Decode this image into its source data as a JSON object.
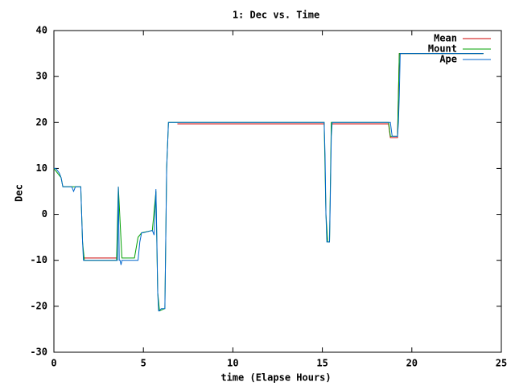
{
  "chart_data": {
    "type": "line",
    "title": "1: Dec vs. Time",
    "x_label": "time (Elapse Hours)",
    "y_label": "Dec",
    "xlim": [
      0,
      25
    ],
    "xticks": [
      0,
      5,
      10,
      15,
      20,
      25
    ],
    "ylim": [
      -30,
      40
    ],
    "yticks": [
      -30,
      -20,
      -10,
      0,
      10,
      20,
      30,
      40
    ],
    "grid": false,
    "legend": "top-right",
    "series": [
      {
        "name": "Mean",
        "color": "#cc0000",
        "x": [
          1.65,
          3.5,
          3.55,
          6.9,
          15.1,
          15.15,
          15.5,
          18.7,
          18.8,
          19.2,
          19.3,
          24
        ],
        "values": [
          -9.5,
          -9.5,
          null,
          19.7,
          19.7,
          null,
          19.7,
          19.7,
          16.7,
          16.7,
          35,
          35
        ]
      },
      {
        "name": "Mount",
        "color": "#00a000",
        "x": [
          0,
          0.4,
          0.5,
          1.5,
          1.6,
          1.7,
          3.5,
          3.6,
          3.8,
          4.5,
          4.7,
          4.9,
          5.5,
          5.7,
          5.8,
          5.9,
          6.2,
          6.3,
          6.4,
          15.1,
          15.2,
          15.3,
          15.4,
          15.5,
          18.7,
          18.8,
          19.2,
          19.3,
          24
        ],
        "values": [
          10,
          8,
          6,
          6,
          -6,
          -10,
          -10,
          6,
          -9.5,
          -9.5,
          -5,
          -4,
          -3.5,
          5,
          -17,
          -21,
          -20.5,
          10,
          20,
          20,
          0,
          -6,
          -6,
          20,
          20,
          17,
          17,
          35,
          35
        ]
      },
      {
        "name": "Ape",
        "color": "#0066cc",
        "x": [
          0,
          0.1,
          0.3,
          0.4,
          0.5,
          1.0,
          1.1,
          1.2,
          1.4,
          1.5,
          1.55,
          1.6,
          1.65,
          1.7,
          3.5,
          3.55,
          3.6,
          3.65,
          3.7,
          3.75,
          3.8,
          3.9,
          4.0,
          4.5,
          4.7,
          4.8,
          4.9,
          5.0,
          5.5,
          5.6,
          5.7,
          5.75,
          5.8,
          5.85,
          5.9,
          6.0,
          6.2,
          6.3,
          6.4,
          6.5,
          15.1,
          15.15,
          15.2,
          15.25,
          15.4,
          15.45,
          15.5,
          15.55,
          18.7,
          18.8,
          18.9,
          19.2,
          19.25,
          19.3,
          19.35,
          23.5,
          24
        ],
        "values": [
          10,
          10,
          9,
          8,
          6,
          6,
          5,
          6,
          6,
          6,
          0,
          -6,
          -10,
          -10,
          -10,
          -10,
          6,
          -10,
          -10,
          -11,
          -10,
          -10,
          -10,
          -10,
          -10,
          -6,
          -4,
          -4,
          -3.5,
          -4.5,
          5.5,
          -5,
          -17,
          -21,
          -21,
          -20.5,
          -20.5,
          10,
          20,
          20,
          20,
          13,
          0,
          -6,
          -6,
          5,
          17,
          20,
          20,
          20,
          17,
          17,
          20,
          26,
          35,
          35,
          35
        ]
      }
    ]
  }
}
